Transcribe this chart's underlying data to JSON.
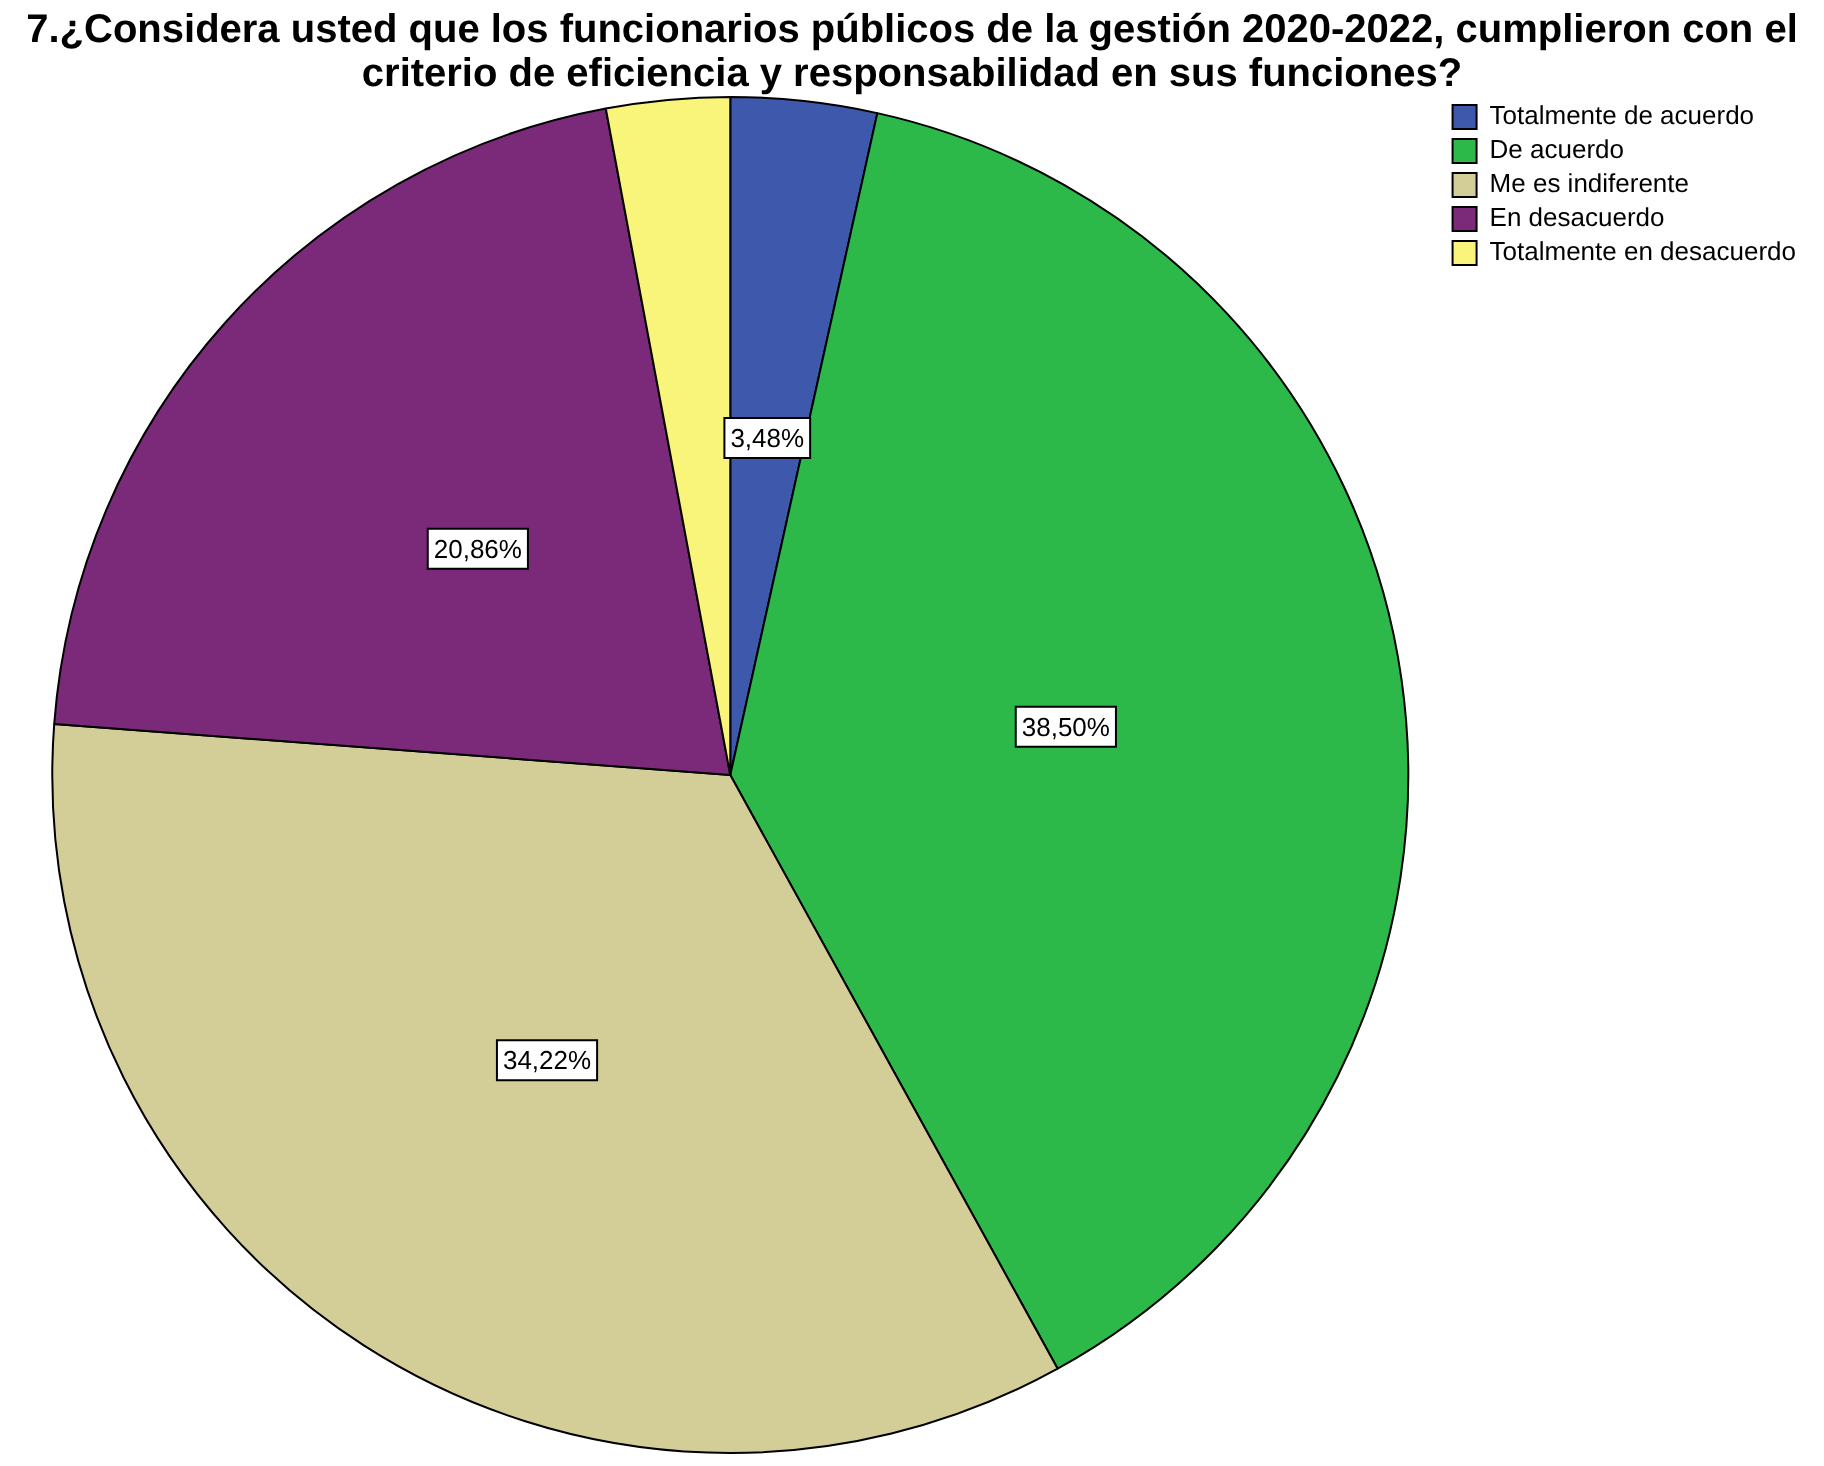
{
  "chart_data": {
    "type": "pie",
    "title": "7.¿Considera usted que los funcionarios públicos de la gestión 2020-2022, cumplieron con el criterio de eficiencia y responsabilidad en sus funciones?",
    "categories": [
      "Totalmente de acuerdo",
      "De acuerdo",
      "Me es indiferente",
      "En desacuerdo",
      "Totalmente en desacuerdo"
    ],
    "values": [
      3.48,
      38.5,
      34.22,
      20.86,
      2.94
    ],
    "colors": [
      "#3e58ac",
      "#2db84a",
      "#d3ce97",
      "#7b2a7a",
      "#f8f57a"
    ],
    "value_labels": [
      "3,48%",
      "38,50%",
      "34,22%",
      "20,86%",
      null
    ],
    "legend": "top right"
  }
}
